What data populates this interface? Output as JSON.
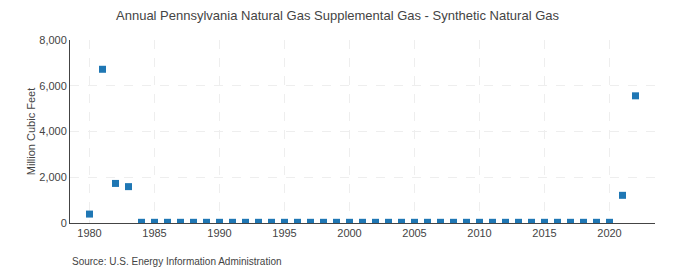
{
  "chart_data": {
    "type": "scatter",
    "title": "Annual Pennsylvania Natural Gas Supplemental Gas - Synthetic Natural Gas",
    "ylabel": "Million Cubic Feet",
    "annotations": [
      "Source: U.S. Energy Information Administration"
    ],
    "marker": "square",
    "grid": true,
    "x": [
      1980,
      1981,
      1982,
      1983,
      1984,
      1985,
      1986,
      1987,
      1988,
      1989,
      1990,
      1991,
      1992,
      1993,
      1994,
      1995,
      1996,
      1997,
      1998,
      1999,
      2000,
      2001,
      2002,
      2003,
      2004,
      2005,
      2006,
      2007,
      2008,
      2009,
      2010,
      2011,
      2012,
      2013,
      2014,
      2015,
      2016,
      2017,
      2018,
      2019,
      2020,
      2021,
      2022
    ],
    "values": [
      390,
      6720,
      1730,
      1590,
      30,
      30,
      30,
      30,
      30,
      30,
      30,
      30,
      30,
      30,
      30,
      30,
      30,
      30,
      30,
      30,
      30,
      30,
      30,
      30,
      30,
      30,
      30,
      30,
      30,
      30,
      30,
      30,
      30,
      30,
      30,
      30,
      30,
      30,
      30,
      30,
      30,
      1210,
      5560
    ],
    "xlim": [
      1978.5,
      2023.5
    ],
    "xticks": [
      1980,
      1985,
      1990,
      1995,
      2000,
      2005,
      2010,
      2015,
      2020
    ],
    "ylim": [
      0,
      8000
    ],
    "yticks": [
      0,
      {
        "value": 2000,
        "label": "2,000"
      },
      {
        "value": 4000,
        "label": "4,000"
      },
      {
        "value": 6000,
        "label": "6,000"
      },
      {
        "value": 8000,
        "label": "8,000"
      }
    ]
  }
}
